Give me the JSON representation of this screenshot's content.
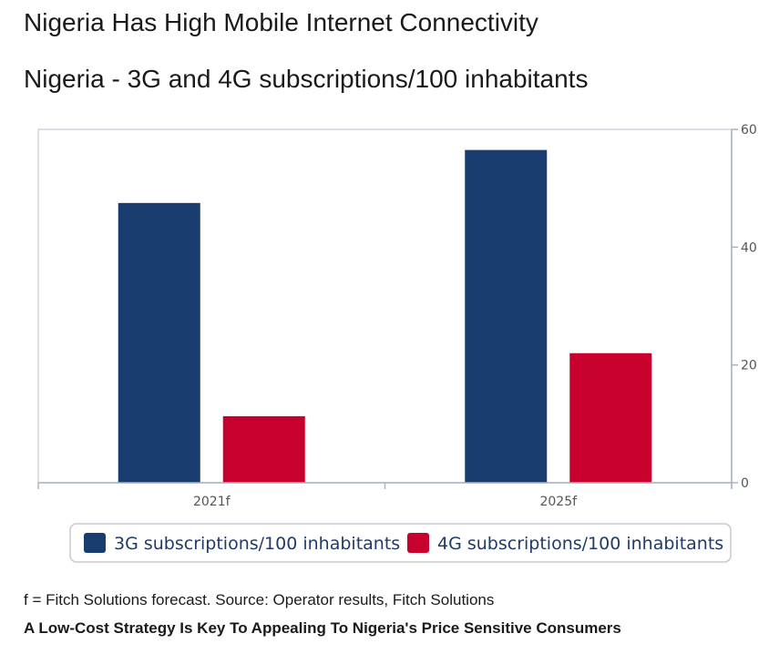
{
  "title": "Nigeria Has High Mobile Internet Connectivity",
  "subtitle": "Nigeria - 3G and 4G subscriptions/100 inhabitants",
  "footnote": "f = Fitch Solutions forecast. Source: Operator results, Fitch Solutions",
  "caption": "A Low-Cost Strategy Is Key To Appealing To Nigeria's Price Sensitive Consumers",
  "chart_data": {
    "type": "bar",
    "categories": [
      "2021f",
      "2025f"
    ],
    "series": [
      {
        "name": "3G subscriptions/100 inhabitants",
        "values": [
          47.5,
          56.5
        ],
        "color": "#1a3d6f"
      },
      {
        "name": "4G subscriptions/100 inhabitants",
        "values": [
          11.3,
          22.0
        ],
        "color": "#c8002e"
      }
    ],
    "ylim": [
      0,
      60
    ],
    "yticks": [
      0,
      20,
      40,
      60
    ],
    "y_axis_side": "right",
    "grid": false,
    "legend_position": "bottom"
  }
}
